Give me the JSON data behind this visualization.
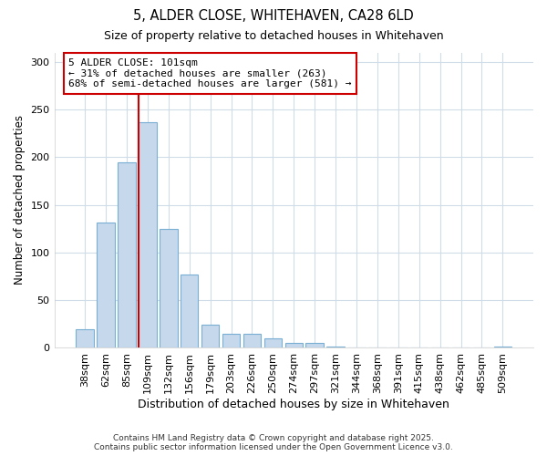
{
  "title_line1": "5, ALDER CLOSE, WHITEHAVEN, CA28 6LD",
  "title_line2": "Size of property relative to detached houses in Whitehaven",
  "xlabel": "Distribution of detached houses by size in Whitehaven",
  "ylabel": "Number of detached properties",
  "categories": [
    "38sqm",
    "62sqm",
    "85sqm",
    "109sqm",
    "132sqm",
    "156sqm",
    "179sqm",
    "203sqm",
    "226sqm",
    "250sqm",
    "274sqm",
    "297sqm",
    "321sqm",
    "344sqm",
    "368sqm",
    "391sqm",
    "415sqm",
    "438sqm",
    "462sqm",
    "485sqm",
    "509sqm"
  ],
  "values": [
    20,
    132,
    195,
    237,
    125,
    77,
    24,
    15,
    15,
    10,
    5,
    5,
    1,
    0,
    0,
    0,
    0,
    0,
    0,
    0,
    1
  ],
  "bar_color": "#c5d8ec",
  "bar_edge_color": "#7aafd4",
  "annotation_title": "5 ALDER CLOSE: 101sqm",
  "annotation_line2": "← 31% of detached houses are smaller (263)",
  "annotation_line3": "68% of semi-detached houses are larger (581) →",
  "annotation_box_facecolor": "#ffffff",
  "annotation_box_edgecolor": "#cc0000",
  "line_color": "#cc0000",
  "line_x_index": 2.575,
  "ylim": [
    0,
    310
  ],
  "yticks": [
    0,
    50,
    100,
    150,
    200,
    250,
    300
  ],
  "footer_line1": "Contains HM Land Registry data © Crown copyright and database right 2025.",
  "footer_line2": "Contains public sector information licensed under the Open Government Licence v3.0.",
  "bg_color": "#ffffff",
  "plot_bg_color": "#ffffff",
  "grid_color": "#d0dce8"
}
